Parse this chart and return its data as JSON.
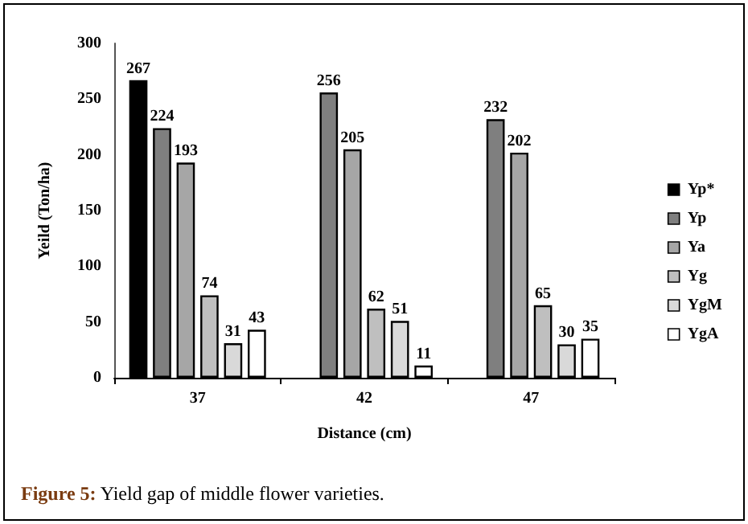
{
  "chart_data": {
    "type": "bar",
    "xlabel": "Distance (cm)",
    "ylabel": "Yeild (Ton/ha)",
    "categories": [
      "37",
      "42",
      "47"
    ],
    "series": [
      {
        "name": "Yp*",
        "color": "#000000",
        "values": [
          267,
          null,
          null
        ]
      },
      {
        "name": "Yp",
        "color": "#7f7f7f",
        "values": [
          224,
          256,
          232
        ]
      },
      {
        "name": "Ya",
        "color": "#a6a6a6",
        "values": [
          193,
          205,
          202
        ]
      },
      {
        "name": "Yg",
        "color": "#bfbfbf",
        "values": [
          74,
          62,
          65
        ]
      },
      {
        "name": "YgM",
        "color": "#d9d9d9",
        "values": [
          31,
          51,
          30
        ]
      },
      {
        "name": "YgA",
        "color": "#ffffff",
        "values": [
          43,
          11,
          35
        ]
      }
    ],
    "ylim": [
      0,
      300
    ],
    "yticks": [
      0,
      50,
      100,
      150,
      200,
      250,
      300
    ],
    "grid": false,
    "legend": "right",
    "data_labels": true,
    "annotations": [
      "Figure 5: Yield gap of middle flower varieties."
    ]
  }
}
